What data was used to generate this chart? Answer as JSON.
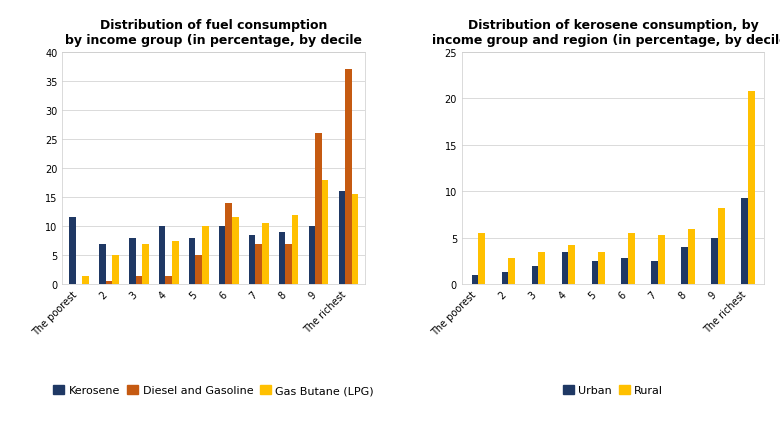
{
  "chart1_title": "Distribution of fuel consumption\nby income group (in percentage, by decile",
  "chart2_title": "Distribution of kerosene consumption, by\nincome group and region (in percentage, by decile)",
  "categories": [
    "The poorest",
    "2",
    "3",
    "4",
    "5",
    "6",
    "7",
    "8",
    "9",
    "The richest"
  ],
  "chart1_series": {
    "Kerosene": [
      11.5,
      7.0,
      8.0,
      10.0,
      8.0,
      10.0,
      8.5,
      9.0,
      10.0,
      16.0
    ],
    "Diesel and Gasoline": [
      0.0,
      0.5,
      1.5,
      1.5,
      5.0,
      14.0,
      7.0,
      7.0,
      26.0,
      37.0
    ],
    "Gas Butane (LPG)": [
      1.5,
      5.0,
      7.0,
      7.5,
      10.0,
      11.5,
      10.5,
      12.0,
      18.0,
      15.5
    ]
  },
  "chart1_colors": {
    "Kerosene": "#1f3864",
    "Diesel and Gasoline": "#c55a11",
    "Gas Butane (LPG)": "#ffc000"
  },
  "chart1_ylim": [
    0,
    40
  ],
  "chart1_yticks": [
    0,
    5,
    10,
    15,
    20,
    25,
    30,
    35,
    40
  ],
  "chart2_series": {
    "Urban": [
      1.0,
      1.3,
      2.0,
      3.5,
      2.5,
      2.8,
      2.5,
      4.0,
      5.0,
      9.3
    ],
    "Rural": [
      5.5,
      2.8,
      3.5,
      4.2,
      3.5,
      5.5,
      5.3,
      6.0,
      8.2,
      20.8
    ]
  },
  "chart2_colors": {
    "Urban": "#1f3864",
    "Rural": "#ffc000"
  },
  "chart2_ylim": [
    0,
    25
  ],
  "chart2_yticks": [
    0.0,
    5.0,
    10.0,
    15.0,
    20.0,
    25.0
  ],
  "background_color": "#ffffff",
  "plot_bg_color": "#ffffff",
  "bar_width": 0.22,
  "tick_label_size": 7.0,
  "legend_fontsize": 8.0,
  "title_fontsize": 9.0
}
